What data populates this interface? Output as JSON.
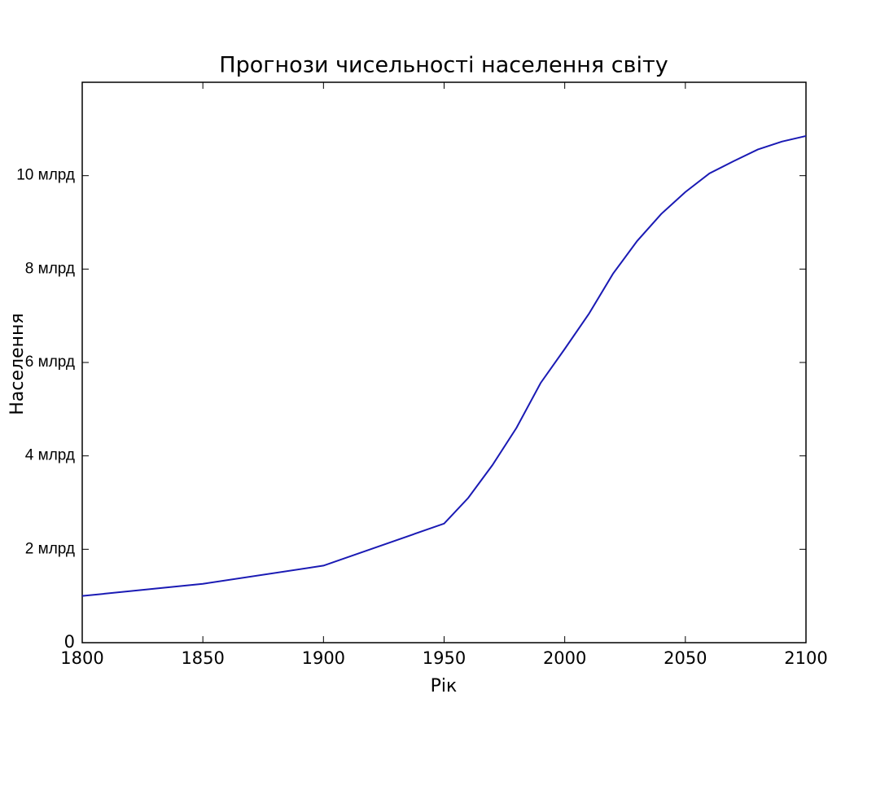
{
  "chart_data": {
    "type": "line",
    "title": "Прогнози чисельності населення світу",
    "x_label": "Рік",
    "y_label": "Населення",
    "x": [
      1800,
      1850,
      1900,
      1950,
      1960,
      1970,
      1980,
      1990,
      2000,
      2010,
      2020,
      2030,
      2040,
      2050,
      2060,
      2070,
      2080,
      2090,
      2100
    ],
    "series": [
      {
        "color": "#1a1ab4",
        "values": [
          1.0,
          1.26,
          1.65,
          2.55,
          3.1,
          3.8,
          4.6,
          5.56,
          6.29,
          7.04,
          7.9,
          8.6,
          9.18,
          9.65,
          10.05,
          10.31,
          10.56,
          10.73,
          10.85
        ]
      }
    ],
    "xlim": [
      1800,
      2100
    ],
    "xticks": [
      1800,
      1850,
      1900,
      1950,
      2000,
      2050,
      2100
    ],
    "ylim": [
      0,
      12
    ],
    "yticks": [
      0,
      {
        "value": 2,
        "label": "2 млрд"
      },
      {
        "value": 4,
        "label": "4 млрд"
      },
      {
        "value": 6,
        "label": "6 млрд"
      },
      {
        "value": 8,
        "label": "8 млрд"
      },
      {
        "value": 10,
        "label": "10 млрд"
      }
    ],
    "grid": false
  }
}
